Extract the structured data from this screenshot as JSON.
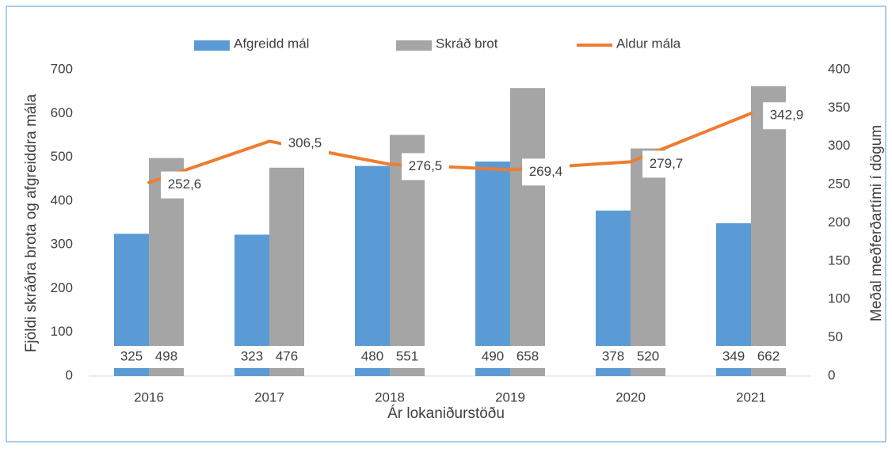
{
  "chart_data": {
    "type": "bar_line",
    "categories": [
      "2016",
      "2017",
      "2018",
      "2019",
      "2020",
      "2021"
    ],
    "series": [
      {
        "name": "Afgreidd mál",
        "color": "#5b9bd5",
        "type": "bar",
        "values": [
          325,
          323,
          480,
          490,
          378,
          349
        ]
      },
      {
        "name": "Skráð brot",
        "color": "#a5a5a5",
        "type": "bar",
        "values": [
          498,
          476,
          551,
          658,
          520,
          662
        ]
      },
      {
        "name": "Aldur mála",
        "color": "#ed7d31",
        "type": "line",
        "axis": "y2",
        "values": [
          252.6,
          306.5,
          276.5,
          269.4,
          279.7,
          342.9
        ],
        "value_labels": [
          "252,6",
          "306,5",
          "276,5",
          "269,4",
          "279,7",
          "342,9"
        ]
      }
    ],
    "xlabel": "Ár lokaniðurstöðu",
    "ylabel": "Fjöldi skráðra brota og afgreiddra mála",
    "y2label": "Meðal meðferðartími í dögum",
    "ylim": [
      0,
      700
    ],
    "yticks": [
      0,
      100,
      200,
      300,
      400,
      500,
      600,
      700
    ],
    "y2lim": [
      0,
      400
    ],
    "y2ticks": [
      0,
      50,
      100,
      150,
      200,
      250,
      300,
      350,
      400
    ],
    "legend": "top"
  }
}
